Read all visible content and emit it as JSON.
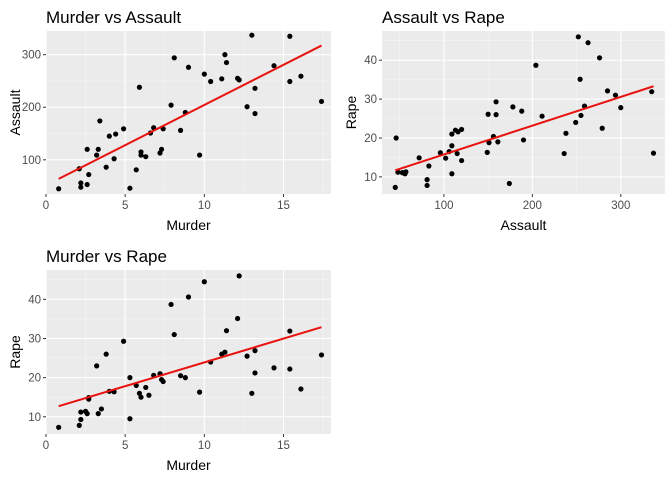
{
  "colors": {
    "panel_background": "#ebebeb",
    "grid_major": "#ffffff",
    "grid_minor": "#f5f5f5",
    "point": "#000000",
    "fit_line": "#e8120f",
    "tick_text": "#4d4d4d"
  },
  "chart_data": [
    {
      "type": "scatter",
      "title": "Murder vs Assault",
      "xlabel": "Murder",
      "ylabel": "Assault",
      "xlim": [
        0.0,
        18.0
      ],
      "ylim": [
        35,
        345
      ],
      "x_ticks": [
        0,
        5,
        10,
        15
      ],
      "y_ticks": [
        100,
        200,
        300
      ],
      "grid": true,
      "series": [
        {
          "points": [
            [
              0.8,
              45
            ],
            [
              2.1,
              83
            ],
            [
              2.2,
              56
            ],
            [
              2.2,
              48
            ],
            [
              2.6,
              120
            ],
            [
              2.6,
              53
            ],
            [
              2.7,
              72
            ],
            [
              3.2,
              109
            ],
            [
              3.3,
              120
            ],
            [
              3.4,
              174
            ],
            [
              3.8,
              86
            ],
            [
              4.0,
              145
            ],
            [
              4.3,
              102
            ],
            [
              4.4,
              149
            ],
            [
              4.9,
              159
            ],
            [
              5.3,
              46
            ],
            [
              5.7,
              81
            ],
            [
              5.9,
              238
            ],
            [
              6.0,
              109
            ],
            [
              6.0,
              115
            ],
            [
              6.3,
              106
            ],
            [
              6.6,
              151
            ],
            [
              6.8,
              161
            ],
            [
              7.2,
              113
            ],
            [
              7.3,
              120
            ],
            [
              7.4,
              159
            ],
            [
              7.9,
              204
            ],
            [
              8.1,
              294
            ],
            [
              8.5,
              156
            ],
            [
              8.8,
              190
            ],
            [
              9.0,
              276
            ],
            [
              9.7,
              109
            ],
            [
              10.0,
              263
            ],
            [
              10.4,
              249
            ],
            [
              11.1,
              254
            ],
            [
              11.3,
              300
            ],
            [
              11.4,
              285
            ],
            [
              12.1,
              255
            ],
            [
              12.2,
              252
            ],
            [
              12.7,
              201
            ],
            [
              13.0,
              337
            ],
            [
              13.2,
              236
            ],
            [
              13.2,
              188
            ],
            [
              14.4,
              279
            ],
            [
              15.4,
              335
            ],
            [
              15.4,
              249
            ],
            [
              16.1,
              259
            ],
            [
              17.4,
              211
            ]
          ]
        }
      ],
      "fit_line": {
        "x": [
          0.8,
          17.4
        ],
        "y": [
          63.8,
          317.3
        ]
      }
    },
    {
      "type": "scatter",
      "title": "Assault vs Rape",
      "xlabel": "Assault",
      "ylabel": "Rape",
      "xlim": [
        30,
        350
      ],
      "ylim": [
        5.6,
        47.5
      ],
      "x_ticks": [
        100,
        200,
        300
      ],
      "y_ticks": [
        10,
        20,
        30,
        40
      ],
      "grid": true,
      "series": [
        {
          "points": [
            [
              45,
              7.3
            ],
            [
              46,
              20.0
            ],
            [
              48,
              11.2
            ],
            [
              53,
              11.1
            ],
            [
              56,
              10.8
            ],
            [
              57,
              11.3
            ],
            [
              72,
              14.9
            ],
            [
              81,
              7.8
            ],
            [
              81,
              9.3
            ],
            [
              83,
              12.8
            ],
            [
              96,
              16.2
            ],
            [
              102,
              14.8
            ],
            [
              106,
              16.5
            ],
            [
              109,
              10.8
            ],
            [
              109,
              18.0
            ],
            [
              109,
              21.0
            ],
            [
              113,
              22.0
            ],
            [
              115,
              16.0
            ],
            [
              116,
              21.6
            ],
            [
              120,
              14.2
            ],
            [
              120,
              22.2
            ],
            [
              149,
              16.3
            ],
            [
              150,
              26.1
            ],
            [
              151,
              18.8
            ],
            [
              156,
              20.4
            ],
            [
              159,
              26.0
            ],
            [
              159,
              29.3
            ],
            [
              161,
              19.0
            ],
            [
              174,
              8.3
            ],
            [
              178,
              28.0
            ],
            [
              188,
              26.9
            ],
            [
              190,
              19.5
            ],
            [
              204,
              38.7
            ],
            [
              211,
              25.6
            ],
            [
              236,
              16.0
            ],
            [
              238,
              21.2
            ],
            [
              249,
              24.0
            ],
            [
              252,
              46.0
            ],
            [
              254,
              35.1
            ],
            [
              255,
              25.8
            ],
            [
              259,
              28.2
            ],
            [
              263,
              44.5
            ],
            [
              276,
              40.6
            ],
            [
              279,
              22.5
            ],
            [
              285,
              32.1
            ],
            [
              294,
              31.0
            ],
            [
              300,
              27.8
            ],
            [
              335,
              31.9
            ],
            [
              337,
              16.1
            ]
          ]
        }
      ],
      "fit_line": {
        "x": [
          45,
          337
        ],
        "y": [
          11.7,
          33.3
        ]
      }
    },
    {
      "type": "scatter",
      "title": "Murder vs Rape",
      "xlabel": "Murder",
      "ylabel": "Rape",
      "xlim": [
        0.0,
        18.0
      ],
      "ylim": [
        5.6,
        47.5
      ],
      "x_ticks": [
        0,
        5,
        10,
        15
      ],
      "y_ticks": [
        10,
        20,
        30,
        40
      ],
      "grid": true,
      "series": [
        {
          "points": [
            [
              0.8,
              7.3
            ],
            [
              2.1,
              7.8
            ],
            [
              2.2,
              9.3
            ],
            [
              2.2,
              11.2
            ],
            [
              2.5,
              11.4
            ],
            [
              2.6,
              10.8
            ],
            [
              2.7,
              14.5
            ],
            [
              2.7,
              14.9
            ],
            [
              3.2,
              23.0
            ],
            [
              3.3,
              10.8
            ],
            [
              3.5,
              12.0
            ],
            [
              3.8,
              26.0
            ],
            [
              4.0,
              16.5
            ],
            [
              4.3,
              16.4
            ],
            [
              4.9,
              29.3
            ],
            [
              5.3,
              20.0
            ],
            [
              5.3,
              9.5
            ],
            [
              5.7,
              18.0
            ],
            [
              5.9,
              16.0
            ],
            [
              6.0,
              15.0
            ],
            [
              6.3,
              17.5
            ],
            [
              6.5,
              15.5
            ],
            [
              6.8,
              20.6
            ],
            [
              7.2,
              21.0
            ],
            [
              7.3,
              19.5
            ],
            [
              7.4,
              19.0
            ],
            [
              7.9,
              38.7
            ],
            [
              8.1,
              31.0
            ],
            [
              8.5,
              20.5
            ],
            [
              8.8,
              20.0
            ],
            [
              9.0,
              40.6
            ],
            [
              9.7,
              16.3
            ],
            [
              10.0,
              44.5
            ],
            [
              10.4,
              24.0
            ],
            [
              11.1,
              26.0
            ],
            [
              11.3,
              26.5
            ],
            [
              11.4,
              32.0
            ],
            [
              12.1,
              35.1
            ],
            [
              12.2,
              46.0
            ],
            [
              12.7,
              25.5
            ],
            [
              13.0,
              16.0
            ],
            [
              13.2,
              21.2
            ],
            [
              13.2,
              26.9
            ],
            [
              14.4,
              22.5
            ],
            [
              15.4,
              31.9
            ],
            [
              15.4,
              22.2
            ],
            [
              16.1,
              17.1
            ],
            [
              17.4,
              25.8
            ]
          ]
        }
      ],
      "fit_line": {
        "x": [
          0.8,
          17.4
        ],
        "y": [
          12.7,
          32.9
        ]
      }
    }
  ]
}
